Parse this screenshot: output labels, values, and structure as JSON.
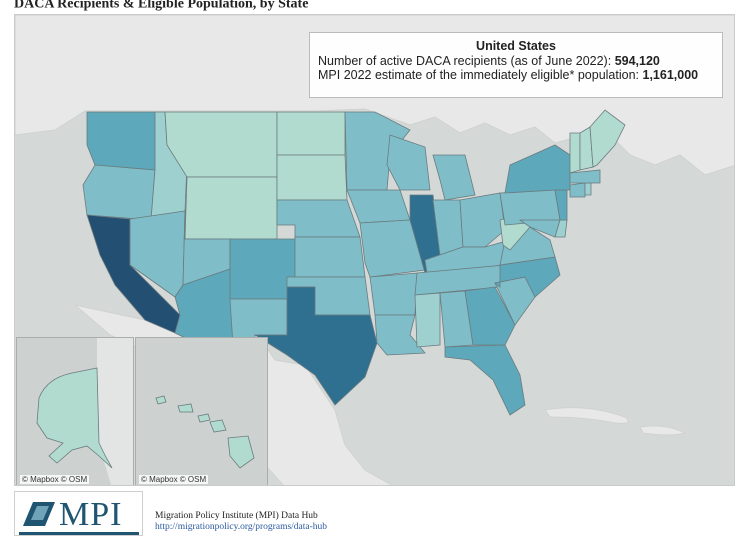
{
  "page": {
    "title": "DACA Recipients & Eligible Population, by State",
    "title_marker": "*"
  },
  "info_box": {
    "title": "United States",
    "line1_label": "Number of active DACA recipients (as of June 2022):",
    "line1_value": "594,120",
    "line2_label": "MPI 2022 estimate of the immediately eligible* population:",
    "line2_value": "1,161,000"
  },
  "map": {
    "credits": [
      "© Mapbox  © OSM",
      "© Mapbox  © OSM"
    ],
    "legend_colors": {
      "lowest": "#b2dbd0",
      "low": "#9ed0cf",
      "medium": "#7fbec8",
      "high": "#5ea8bb",
      "highest": "#2f7090",
      "max": "#234f73"
    },
    "state_shading": {
      "CA": "max",
      "TX": "highest",
      "IL": "highest",
      "NY": "high",
      "FL": "high",
      "WA": "high",
      "AZ": "high",
      "GA": "high",
      "CO": "high",
      "NC": "high",
      "NJ": "high",
      "OR": "medium",
      "NV": "medium",
      "UT": "medium",
      "KS": "medium",
      "NE": "medium",
      "OK": "medium",
      "VA": "medium",
      "MD": "medium",
      "IN": "medium",
      "MI": "medium",
      "TN": "medium",
      "AR": "medium",
      "WI": "medium",
      "MN": "medium",
      "SC": "medium",
      "LA": "medium",
      "NM": "medium",
      "PA": "medium",
      "OH": "medium",
      "MA": "medium",
      "CT": "medium",
      "IA": "medium",
      "MO": "medium",
      "KY": "medium",
      "AL": "medium",
      "ID": "low",
      "MS": "low",
      "DE": "low",
      "RI": "low",
      "MT": "lowest",
      "WY": "lowest",
      "ND": "lowest",
      "SD": "lowest",
      "ME": "lowest",
      "VT": "lowest",
      "NH": "lowest",
      "WV": "lowest",
      "AK": "lowest",
      "HI": "lowest"
    }
  },
  "footer": {
    "logo_text": "MPI",
    "org_name": "Migration Policy Institute (MPI) Data Hub",
    "link": "http://migrationpolicy.org/programs/data-hub"
  }
}
